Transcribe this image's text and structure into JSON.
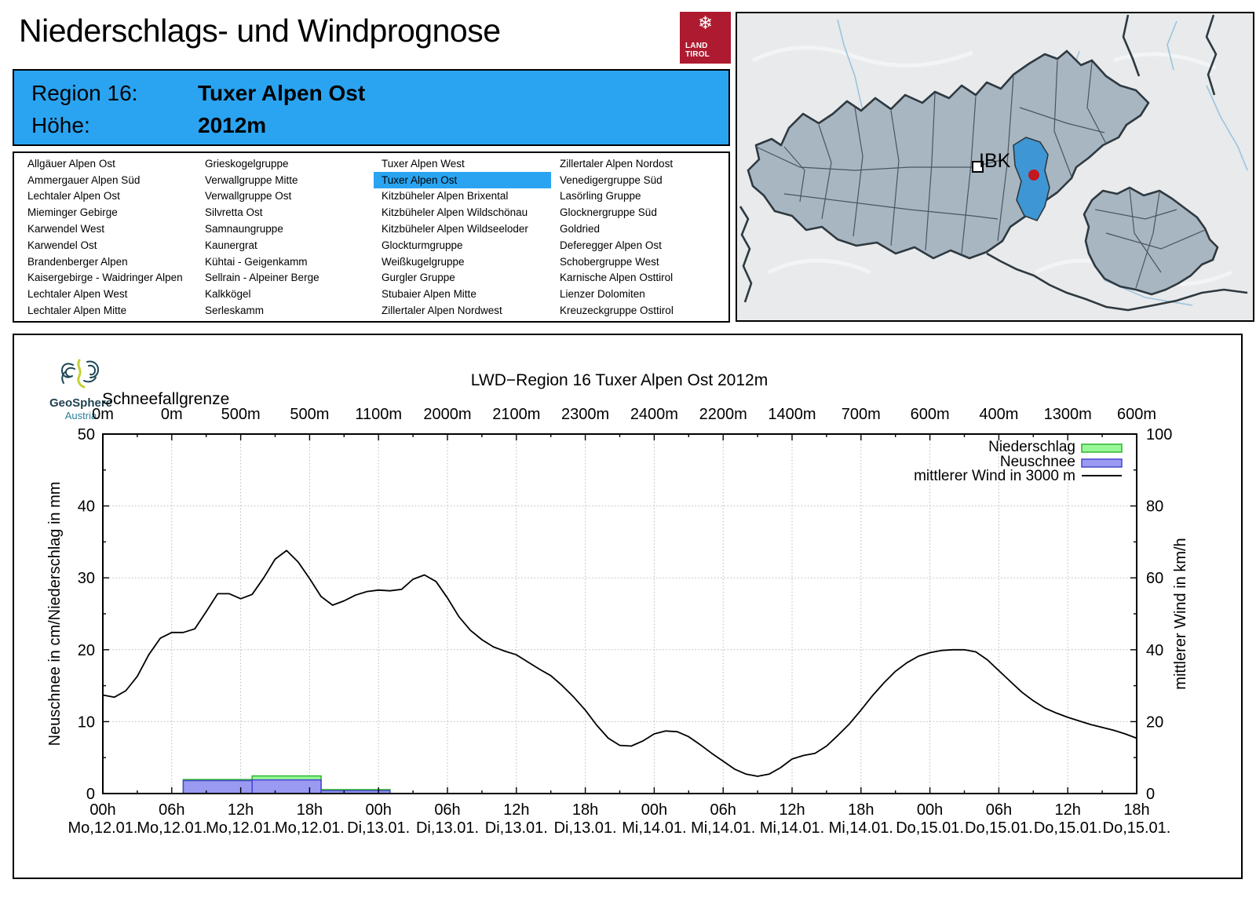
{
  "header": {
    "title": "Niederschlags- und Windprognose",
    "logo": {
      "line1": "LAND",
      "line2": "TIROL",
      "color": "#ae1a2f"
    },
    "region_label": "Region 16:",
    "region_value": "Tuxer Alpen Ost",
    "altitude_label": "Höhe:",
    "altitude_value": "2012m",
    "accent_color": "#2aa4f1"
  },
  "region_list": {
    "selected": "Tuxer Alpen Ost",
    "columns": [
      [
        "Allgäuer Alpen Ost",
        "Ammergauer Alpen Süd",
        "Lechtaler Alpen Ost",
        "Mieminger Gebirge",
        "Karwendel West",
        "Karwendel Ost",
        "Brandenberger Alpen",
        "Kaisergebirge - Waidringer Alpen",
        "Lechtaler Alpen West",
        "Lechtaler Alpen Mitte"
      ],
      [
        "Grieskogelgruppe",
        "Verwallgruppe Mitte",
        "Verwallgruppe Ost",
        "Silvretta Ost",
        "Samnaungruppe",
        "Kaunergrat",
        "Kühtai - Geigenkamm",
        "Sellrain - Alpeiner Berge",
        "Kalkkögel",
        "Serleskamm"
      ],
      [
        "Tuxer Alpen West",
        "Tuxer Alpen Ost",
        "Kitzbüheler Alpen Brixental",
        "Kitzbüheler Alpen Wildschönau",
        "Kitzbüheler Alpen Wildseeloder",
        "Glockturmgruppe",
        "Weißkugelgruppe",
        "Gurgler Gruppe",
        "Stubaier Alpen Mitte",
        "Zillertaler Alpen Nordwest"
      ],
      [
        "Zillertaler Alpen Nordost",
        "Venedigergruppe Süd",
        "Lasörling Gruppe",
        "Glocknergruppe Süd",
        "Goldried",
        "Deferegger Alpen Ost",
        "Schobergruppe West",
        "Karnische Alpen Osttirol",
        "Lienzer Dolomiten",
        "Kreuzeckgruppe Osttirol"
      ]
    ]
  },
  "map": {
    "city_label": "IBK",
    "highlight_color": "#3e97d4",
    "marker_color": "#c2181e"
  },
  "source": {
    "name": "GeoSphere",
    "subtitle": "Austria"
  },
  "chart_data": {
    "type": "line+bar",
    "title": "LWD−Region 16 Tuxer Alpen Ost 2012m",
    "snowline_label": "Schneefallgrenze",
    "x_hours_range": [
      0,
      90
    ],
    "x_ticks": [
      {
        "time": "00h",
        "date": "Mo,12.01."
      },
      {
        "time": "06h",
        "date": "Mo,12.01."
      },
      {
        "time": "12h",
        "date": "Mo,12.01."
      },
      {
        "time": "18h",
        "date": "Mo,12.01."
      },
      {
        "time": "00h",
        "date": "Di,13.01."
      },
      {
        "time": "06h",
        "date": "Di,13.01."
      },
      {
        "time": "12h",
        "date": "Di,13.01."
      },
      {
        "time": "18h",
        "date": "Di,13.01."
      },
      {
        "time": "00h",
        "date": "Mi,14.01."
      },
      {
        "time": "06h",
        "date": "Mi,14.01."
      },
      {
        "time": "12h",
        "date": "Mi,14.01."
      },
      {
        "time": "18h",
        "date": "Mi,14.01."
      },
      {
        "time": "00h",
        "date": "Do,15.01."
      },
      {
        "time": "06h",
        "date": "Do,15.01."
      },
      {
        "time": "12h",
        "date": "Do,15.01."
      },
      {
        "time": "18h",
        "date": "Do,15.01."
      }
    ],
    "snowline_m": [
      "0m",
      "0m",
      "500m",
      "500m",
      "1100m",
      "2000m",
      "2100m",
      "2300m",
      "2400m",
      "2200m",
      "1400m",
      "700m",
      "600m",
      "400m",
      "1300m",
      "600m"
    ],
    "left_axis": {
      "label": "Neuschnee in cm/Niederschlag in mm",
      "min": 0,
      "max": 50,
      "tick": 10,
      "minor_tick": 5
    },
    "right_axis": {
      "label": "mittlerer Wind in km/h",
      "min": 0,
      "max": 100,
      "tick": 20,
      "minor_tick": 10
    },
    "grid": true,
    "legend_position": "top-right",
    "legend": [
      {
        "label": "Niederschlag",
        "fill": "#98f898",
        "stroke": "#2db52d"
      },
      {
        "label": "Neuschnee",
        "fill": "#9a9af2",
        "stroke": "#4646cc"
      },
      {
        "label": "mittlerer Wind in 3000 m",
        "fill": "#000000",
        "stroke": "#000000"
      }
    ],
    "precipitation_bars_mm": [
      {
        "from_hour": 7,
        "to_hour": 13,
        "mm": 1.95
      },
      {
        "from_hour": 13,
        "to_hour": 19,
        "mm": 2.45
      },
      {
        "from_hour": 19,
        "to_hour": 25,
        "mm": 0.55
      }
    ],
    "new_snow_bars_cm": [
      {
        "from_hour": 7,
        "to_hour": 13,
        "cm": 1.8
      },
      {
        "from_hour": 13,
        "to_hour": 19,
        "cm": 1.9
      },
      {
        "from_hour": 19,
        "to_hour": 25,
        "cm": 0.4
      }
    ],
    "wind_3000m_kmh": {
      "start_hour": 0,
      "step_h": 1,
      "values": [
        27.4,
        26.8,
        28.6,
        32.6,
        38.6,
        43.2,
        44.8,
        44.8,
        45.8,
        50.6,
        55.6,
        55.6,
        54.2,
        55.4,
        60.0,
        65.2,
        67.6,
        64.4,
        59.8,
        54.8,
        52.4,
        53.6,
        55.2,
        56.2,
        56.6,
        56.4,
        56.8,
        59.6,
        60.8,
        59.0,
        54.4,
        49.2,
        45.4,
        42.8,
        40.8,
        39.6,
        38.6,
        36.6,
        34.6,
        32.8,
        30.0,
        26.8,
        23.2,
        19.0,
        15.4,
        13.4,
        13.2,
        14.6,
        16.6,
        17.4,
        17.2,
        15.8,
        13.6,
        11.2,
        9.0,
        6.8,
        5.4,
        4.8,
        5.4,
        7.2,
        9.6,
        10.6,
        11.2,
        13.2,
        16.2,
        19.4,
        23.2,
        27.2,
        30.8,
        34.0,
        36.4,
        38.2,
        39.2,
        39.8,
        40.0,
        40.0,
        39.4,
        37.2,
        34.2,
        31.2,
        28.2,
        25.8,
        23.8,
        22.4,
        21.2,
        20.2,
        19.2,
        18.4,
        17.6,
        16.6,
        15.4
      ]
    }
  }
}
